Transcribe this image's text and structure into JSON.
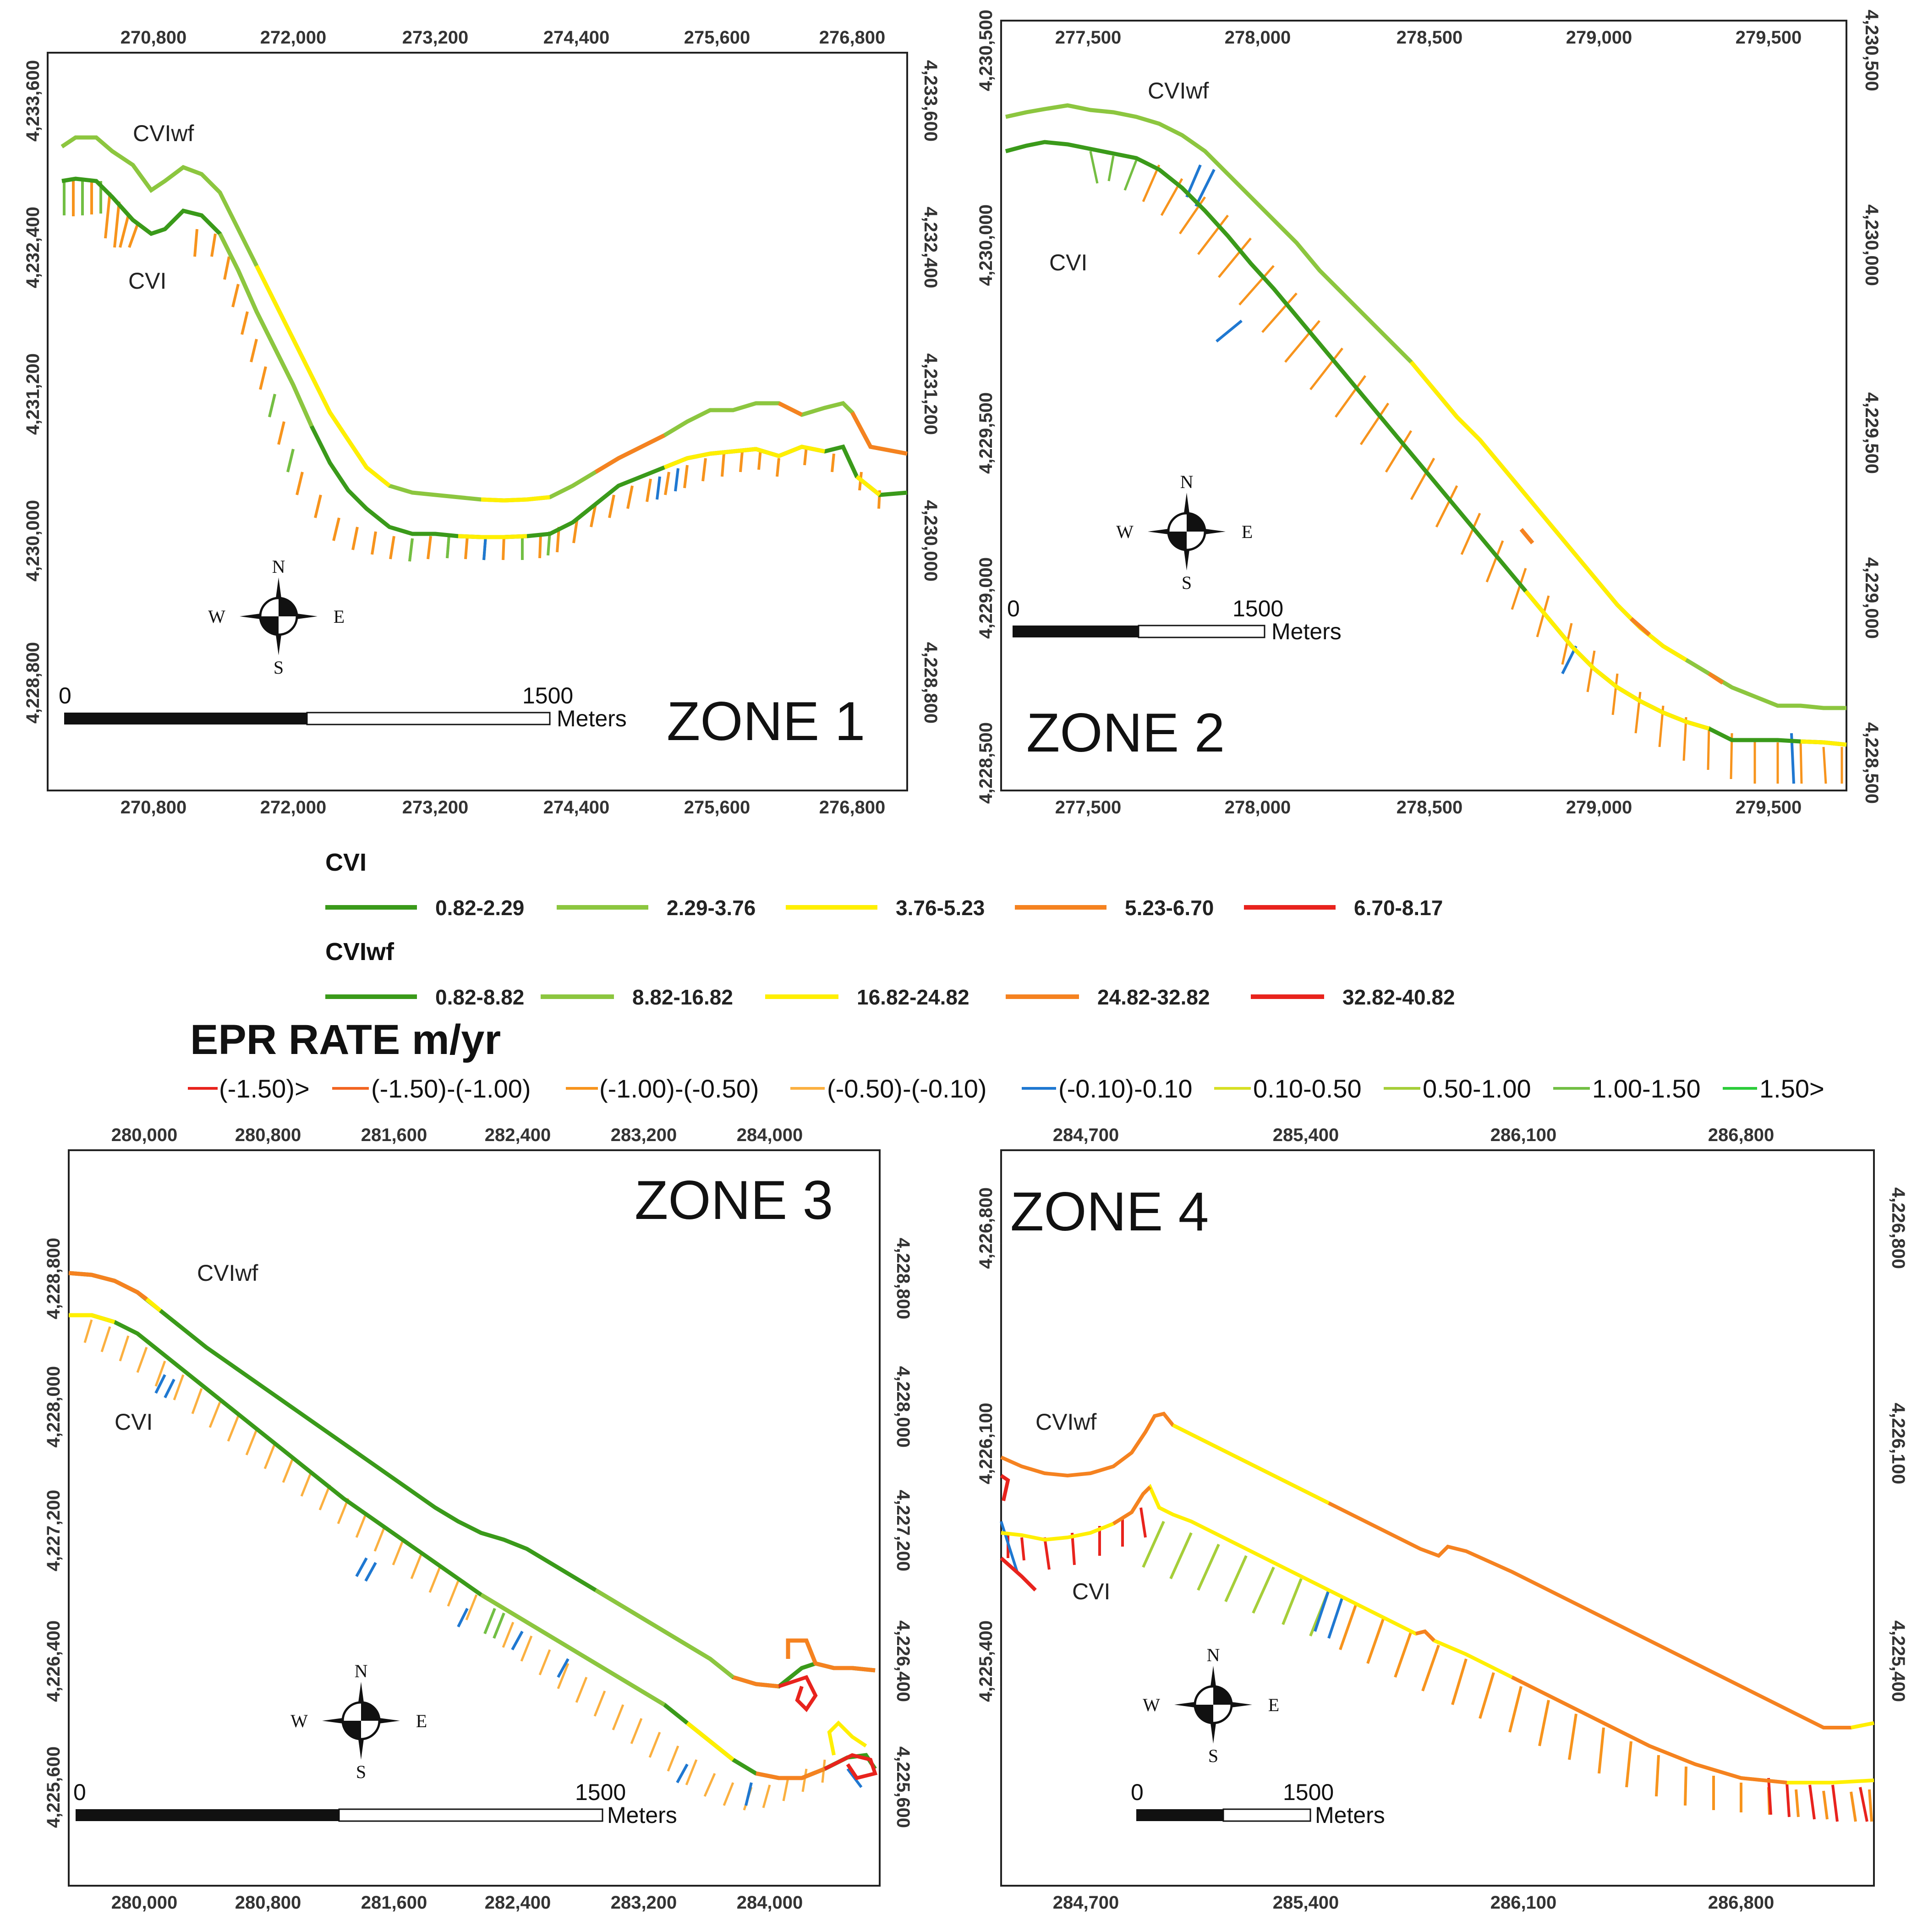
{
  "colors": {
    "dark_green": "#3a9a1a",
    "light_green": "#8cc63f",
    "yellow": "#ffef00",
    "orange": "#f58220",
    "red": "#e8231d",
    "blue": "#1f78d1",
    "bright_green": "#2ccc3a"
  },
  "zones": [
    {
      "title": "ZONE 1",
      "top_ticks": [
        "270,800",
        "272,000",
        "273,200",
        "274,400",
        "275,600",
        "276,800"
      ],
      "bottom_ticks": [
        "270,800",
        "272,000",
        "273,200",
        "274,400",
        "275,600",
        "276,800"
      ],
      "left_ticks": [
        "4,233,600",
        "4,232,400",
        "4,231,200",
        "4,230,000",
        "4,228,800"
      ],
      "right_ticks": [
        "4,233,600",
        "4,232,400",
        "4,231,200",
        "4,230,000",
        "4,228,800"
      ],
      "line_labels": {
        "cviwf": "CVIwf",
        "cvi": "CVI"
      },
      "scale": {
        "start": "0",
        "end": "1500",
        "unit": "Meters"
      }
    },
    {
      "title": "ZONE 2",
      "top_ticks": [
        "277,500",
        "278,000",
        "278,500",
        "279,000",
        "279,500"
      ],
      "bottom_ticks": [
        "277,500",
        "278,000",
        "278,500",
        "279,000",
        "279,500"
      ],
      "left_ticks": [
        "4,230,500",
        "4,230,000",
        "4,229,500",
        "4,229,000",
        "4,228,500"
      ],
      "right_ticks": [
        "4,230,500",
        "4,230,000",
        "4,229,500",
        "4,229,000",
        "4,228,500"
      ],
      "line_labels": {
        "cviwf": "CVIwf",
        "cvi": "CVI"
      },
      "scale": {
        "start": "0",
        "end": "1500",
        "unit": "Meters"
      }
    },
    {
      "title": "ZONE 3",
      "top_ticks": [
        "280,000",
        "280,800",
        "281,600",
        "282,400",
        "283,200",
        "284,000"
      ],
      "bottom_ticks": [
        "280,000",
        "280,800",
        "281,600",
        "282,400",
        "283,200",
        "284,000"
      ],
      "left_ticks": [
        "4,228,800",
        "4,228,000",
        "4,227,200",
        "4,226,400",
        "4,225,600"
      ],
      "right_ticks": [
        "4,228,800",
        "4,228,000",
        "4,227,200",
        "4,226,400",
        "4,225,600"
      ],
      "line_labels": {
        "cviwf": "CVIwf",
        "cvi": "CVI"
      },
      "scale": {
        "start": "0",
        "end": "1500",
        "unit": "Meters"
      }
    },
    {
      "title": "ZONE 4",
      "top_ticks": [
        "284,700",
        "285,400",
        "286,100",
        "286,800"
      ],
      "bottom_ticks": [
        "284,700",
        "285,400",
        "286,100",
        "286,800"
      ],
      "left_ticks": [
        "4,226,800",
        "4,226,100",
        "4,225,400"
      ],
      "right_ticks": [
        "4,226,800",
        "4,226,100",
        "4,225,400"
      ],
      "line_labels": {
        "cviwf": "CVIwf",
        "cvi": "CVI"
      },
      "scale": {
        "start": "0",
        "end": "1500",
        "unit": "Meters"
      }
    }
  ],
  "compass": {
    "n": "N",
    "s": "S",
    "e": "E",
    "w": "W"
  },
  "legend": {
    "cvi": {
      "title": "CVI",
      "items": [
        {
          "label": "0.82-2.29",
          "color": "#3a9a1a"
        },
        {
          "label": "2.29-3.76",
          "color": "#8cc63f"
        },
        {
          "label": "3.76-5.23",
          "color": "#ffef00"
        },
        {
          "label": "5.23-6.70",
          "color": "#f58220"
        },
        {
          "label": "6.70-8.17",
          "color": "#e8231d"
        }
      ]
    },
    "cviwf": {
      "title": "CVIwf",
      "items": [
        {
          "label": "0.82-8.82",
          "color": "#3a9a1a"
        },
        {
          "label": "8.82-16.82",
          "color": "#8cc63f"
        },
        {
          "label": "16.82-24.82",
          "color": "#ffef00"
        },
        {
          "label": "24.82-32.82",
          "color": "#f58220"
        },
        {
          "label": "32.82-40.82",
          "color": "#e8231d"
        }
      ]
    },
    "epr": {
      "title": "EPR RATE m/yr",
      "items": [
        {
          "label": "(-1.50)>",
          "color": "#e8231d"
        },
        {
          "label": "(-1.50)-(-1.00)",
          "color": "#f26522"
        },
        {
          "label": "(-1.00)-(-0.50)",
          "color": "#f7941d"
        },
        {
          "label": "(-0.50)-(-0.10)",
          "color": "#fbb040"
        },
        {
          "label": "(-0.10)-0.10",
          "color": "#1f78d1"
        },
        {
          "label": "0.10-0.50",
          "color": "#d7df23"
        },
        {
          "label": "0.50-1.00",
          "color": "#a6ce39"
        },
        {
          "label": "1.00-1.50",
          "color": "#72bf44"
        },
        {
          "label": "1.50>",
          "color": "#2ccc3a"
        }
      ]
    }
  }
}
